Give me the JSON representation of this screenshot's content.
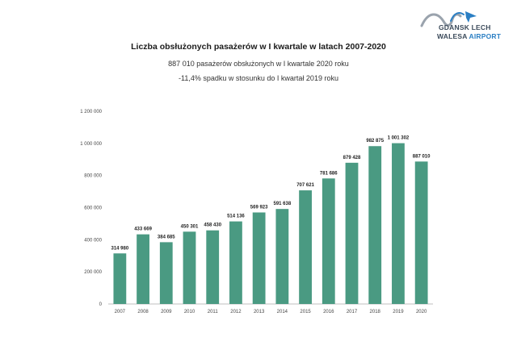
{
  "logo": {
    "line1": "GDANSK LECH",
    "line2_a": "WALESA ",
    "line2_b": "AIRPORT",
    "icon": "wave-plane-icon"
  },
  "header": {
    "title": "Liczba obsłużonych pasażerów w I kwartale w latach 2007-2020",
    "subtitle1": "887 010 pasażerów obsłużonych w I kwartale 2020 roku",
    "subtitle2": "-11,4% spadku w stosunku do I kwartał 2019 roku"
  },
  "chart_data": {
    "type": "bar",
    "categories": [
      "2007",
      "2008",
      "2009",
      "2010",
      "2011",
      "2012",
      "2013",
      "2014",
      "2015",
      "2016",
      "2017",
      "2018",
      "2019",
      "2020"
    ],
    "values": [
      314980,
      433669,
      384685,
      450301,
      458430,
      514136,
      569923,
      591638,
      707621,
      781686,
      879428,
      982875,
      1001302,
      887010
    ],
    "value_labels": [
      "314 980",
      "433 669",
      "384 685",
      "450 301",
      "458 430",
      "514 136",
      "569 923",
      "591 638",
      "707 621",
      "781 686",
      "879 428",
      "982 875",
      "1 001 302",
      "887 010"
    ],
    "ylim": [
      0,
      1200000
    ],
    "yticks": [
      0,
      200000,
      400000,
      600000,
      800000,
      1000000,
      1200000
    ],
    "ytick_labels": [
      "0",
      "200 000",
      "400 000",
      "600 000",
      "800 000",
      "1 000 000",
      "1 200 000"
    ],
    "title": "",
    "xlabel": "",
    "ylabel": "",
    "grid": false,
    "legend": "none",
    "bar_color": "#4a9a82"
  }
}
